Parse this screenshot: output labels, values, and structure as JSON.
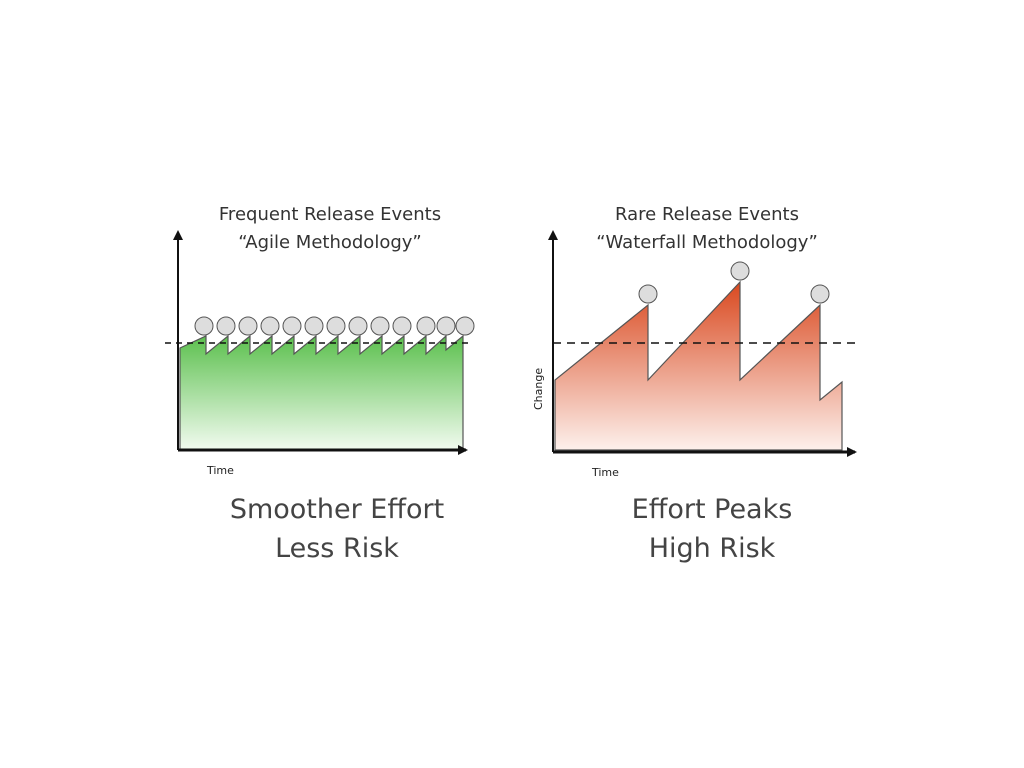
{
  "panels": [
    {
      "title_line1": "Frequent Release Events",
      "title_line2": "“Agile Methodology”",
      "x_axis_label": "Time",
      "caption_line1": "Smoother Effort",
      "caption_line2": "Less Risk"
    },
    {
      "title_line1": "Rare Release Events",
      "title_line2": "“Waterfall Methodology”",
      "x_axis_label": "Time",
      "y_axis_label": "Change",
      "caption_line1": "Effort Peaks",
      "caption_line2": "High Risk"
    }
  ]
}
